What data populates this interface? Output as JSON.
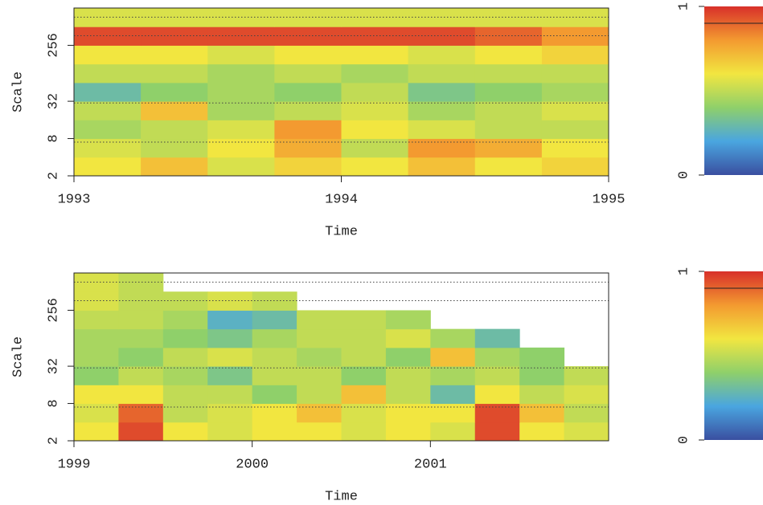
{
  "chart_data": [
    {
      "type": "heatmap",
      "xlabel": "Time",
      "ylabel": "Scale",
      "log_y": true,
      "xlim": [
        1993,
        1995
      ],
      "xticks": [
        1993,
        1994,
        1995
      ],
      "ylim": [
        2,
        1024
      ],
      "yticks": [
        2,
        8,
        32,
        256
      ],
      "hlines": [
        7,
        30,
        365,
        730
      ],
      "x_bins": [
        1993,
        1993.25,
        1993.5,
        1993.75,
        1994,
        1994.25,
        1994.5,
        1994.75,
        1995
      ],
      "y_bins": [
        2,
        4,
        8,
        16,
        32,
        64,
        128,
        256,
        512,
        1024
      ],
      "z": [
        [
          0.6,
          0.7,
          0.55,
          0.65,
          0.6,
          0.7,
          0.6,
          0.65
        ],
        [
          0.55,
          0.5,
          0.6,
          0.75,
          0.5,
          0.8,
          0.75,
          0.6
        ],
        [
          0.45,
          0.5,
          0.55,
          0.8,
          0.6,
          0.55,
          0.5,
          0.5
        ],
        [
          0.5,
          0.7,
          0.45,
          0.5,
          0.55,
          0.45,
          0.5,
          0.55
        ],
        [
          0.3,
          0.4,
          0.45,
          0.4,
          0.5,
          0.35,
          0.4,
          0.45
        ],
        [
          0.5,
          0.5,
          0.45,
          0.5,
          0.45,
          0.5,
          0.5,
          0.5
        ],
        [
          0.6,
          0.6,
          0.55,
          0.6,
          0.6,
          0.55,
          0.6,
          0.65
        ],
        [
          0.95,
          0.95,
          0.95,
          0.95,
          0.95,
          0.95,
          0.9,
          0.8
        ],
        [
          0.55,
          0.55,
          0.55,
          0.55,
          0.55,
          0.55,
          0.55,
          0.55
        ]
      ],
      "zlim": [
        0,
        1
      ],
      "zticks": [
        0,
        1
      ],
      "colorbar_line": 0.9,
      "colors": [
        "#3a4fa0",
        "#4aa6e0",
        "#8fd06a",
        "#f2e640",
        "#f39a30",
        "#d8302a"
      ]
    },
    {
      "type": "heatmap",
      "xlabel": "Time",
      "ylabel": "Scale",
      "log_y": true,
      "xlim": [
        1999,
        2002
      ],
      "xticks": [
        1999,
        2000,
        2001
      ],
      "ylim": [
        2,
        1024
      ],
      "yticks": [
        2,
        8,
        32,
        256
      ],
      "hlines": [
        7,
        30,
        365,
        730
      ],
      "x_bins": [
        1999,
        1999.25,
        1999.5,
        1999.75,
        2000,
        2000.25,
        2000.5,
        2000.75,
        2001,
        2001.25,
        2001.5,
        2001.75,
        2002
      ],
      "y_bins": [
        2,
        4,
        8,
        16,
        32,
        64,
        128,
        256,
        512,
        1024
      ],
      "z": [
        [
          0.6,
          0.95,
          0.6,
          0.55,
          0.6,
          0.6,
          0.55,
          0.6,
          0.55,
          0.95,
          0.6,
          0.55
        ],
        [
          0.55,
          0.9,
          0.5,
          0.55,
          0.6,
          0.7,
          0.55,
          0.6,
          0.6,
          0.95,
          0.7,
          0.5
        ],
        [
          0.6,
          0.6,
          0.5,
          0.5,
          0.4,
          0.5,
          0.7,
          0.5,
          0.3,
          0.6,
          0.5,
          0.55
        ],
        [
          0.4,
          0.5,
          0.45,
          0.35,
          0.5,
          0.5,
          0.4,
          0.5,
          0.45,
          0.5,
          0.4,
          0.5
        ],
        [
          0.45,
          0.4,
          0.5,
          0.55,
          0.5,
          0.45,
          0.5,
          0.4,
          0.7,
          0.45,
          0.4,
          null
        ],
        [
          0.45,
          0.45,
          0.4,
          0.35,
          0.45,
          0.5,
          0.5,
          0.55,
          0.45,
          0.3,
          null,
          null
        ],
        [
          0.5,
          0.5,
          0.45,
          0.25,
          0.3,
          0.5,
          0.5,
          0.45,
          null,
          null,
          null,
          null
        ],
        [
          0.55,
          0.5,
          0.5,
          0.55,
          0.5,
          null,
          null,
          null,
          null,
          null,
          null,
          null
        ],
        [
          0.55,
          0.5,
          null,
          null,
          null,
          null,
          null,
          null,
          null,
          null,
          null,
          null
        ]
      ],
      "zlim": [
        0,
        1
      ],
      "zticks": [
        0,
        1
      ],
      "colorbar_line": 0.9,
      "colors": [
        "#3a4fa0",
        "#4aa6e0",
        "#8fd06a",
        "#f2e640",
        "#f39a30",
        "#d8302a"
      ]
    }
  ]
}
